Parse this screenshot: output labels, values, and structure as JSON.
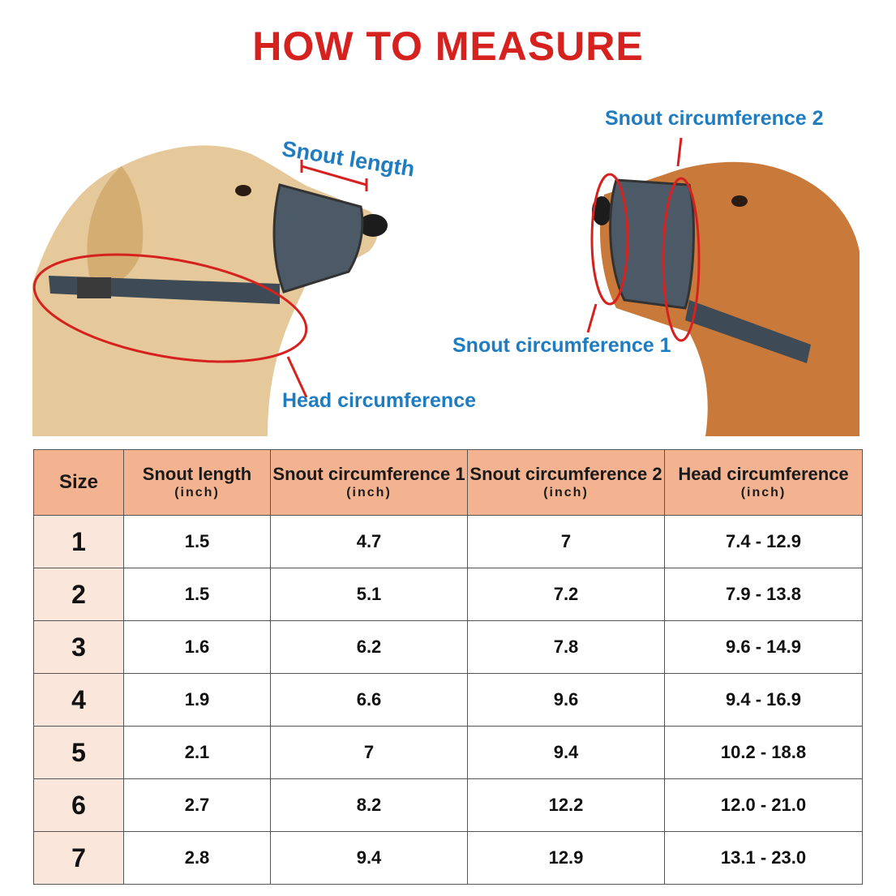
{
  "title": "HOW TO MEASURE",
  "labels": {
    "snout_length": "Snout length",
    "head_circumference": "Head circumference",
    "snout_circumference_1": "Snout circumference 1",
    "snout_circumference_2": "Snout circumference 2"
  },
  "colors": {
    "title": "#d6221f",
    "label": "#1f7cc0",
    "header_bg": "#f3b390",
    "size_column_bg": "#fbe6dc",
    "measure_line": "#d6221f"
  },
  "table": {
    "headers": [
      {
        "name": "Size",
        "unit": ""
      },
      {
        "name": "Snout length",
        "unit": "(inch)"
      },
      {
        "name": "Snout circumference 1",
        "unit": "(inch)"
      },
      {
        "name": "Snout circumference 2",
        "unit": "(inch)"
      },
      {
        "name": "Head circumference",
        "unit": "(inch)"
      }
    ],
    "rows": [
      [
        "1",
        "1.5",
        "4.7",
        "7",
        "7.4 - 12.9"
      ],
      [
        "2",
        "1.5",
        "5.1",
        "7.2",
        "7.9 - 13.8"
      ],
      [
        "3",
        "1.6",
        "6.2",
        "7.8",
        "9.6 - 14.9"
      ],
      [
        "4",
        "1.9",
        "6.6",
        "9.6",
        "9.4 - 16.9"
      ],
      [
        "5",
        "2.1",
        "7",
        "9.4",
        "10.2 - 18.8"
      ],
      [
        "6",
        "2.7",
        "8.2",
        "12.2",
        "12.0 - 21.0"
      ],
      [
        "7",
        "2.8",
        "9.4",
        "12.9",
        "13.1 - 23.0"
      ]
    ]
  }
}
